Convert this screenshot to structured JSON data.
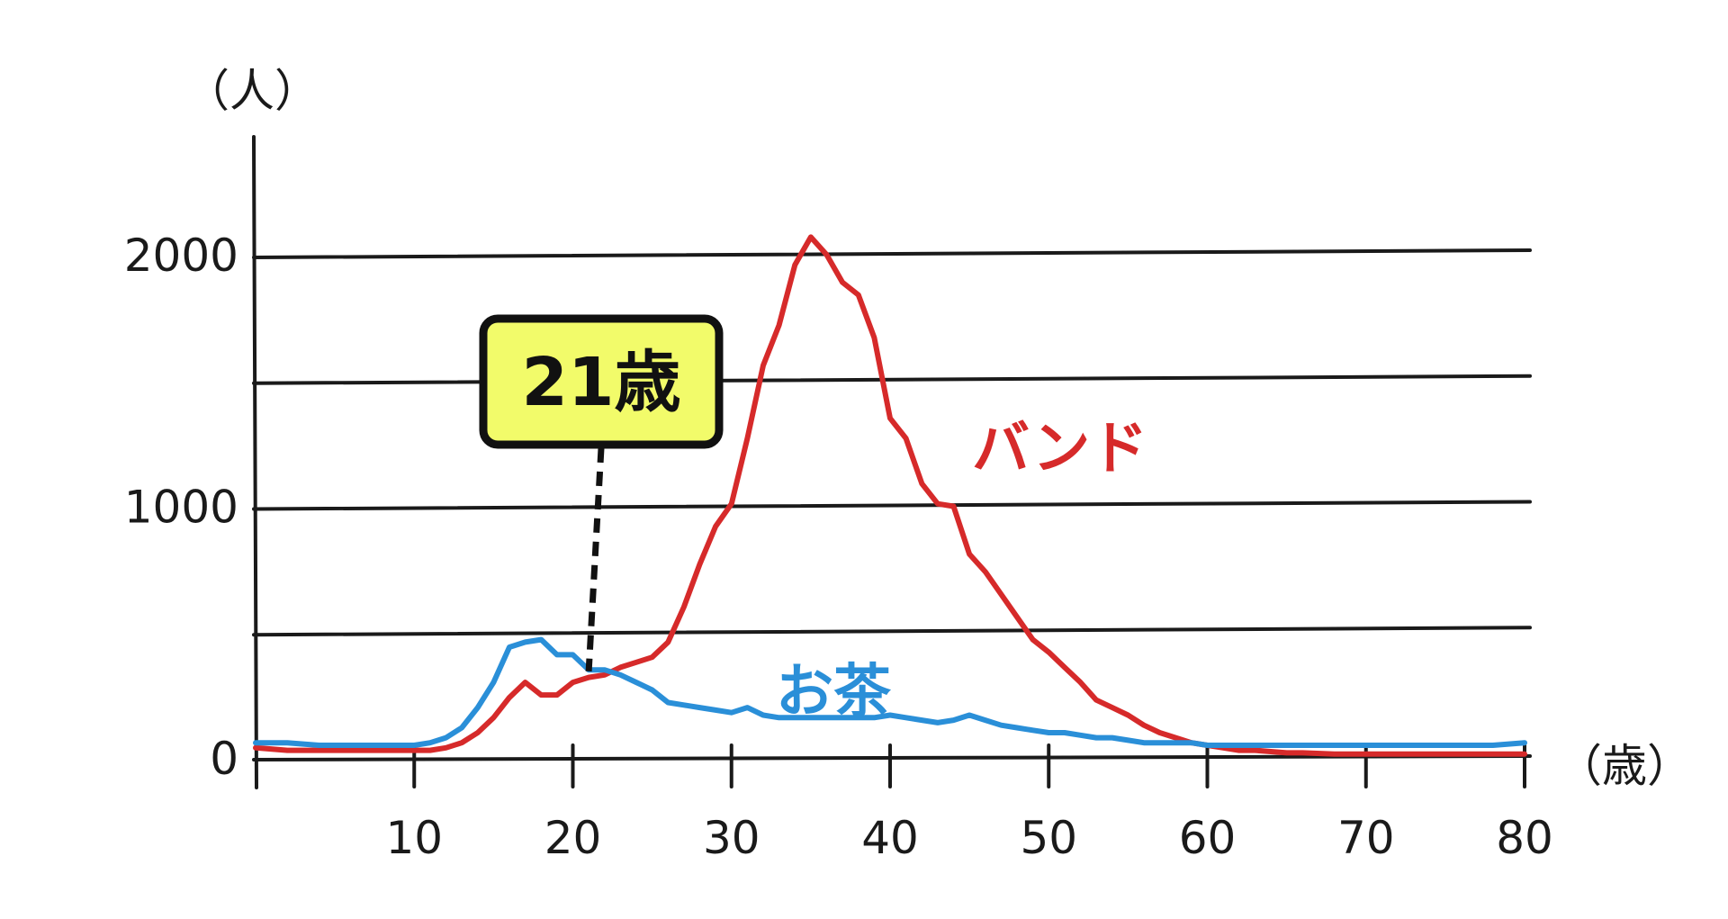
{
  "colors": {
    "band": "#d62a2a",
    "tea": "#2a8fd8",
    "axis": "#1a1a1a",
    "callout_fill": "#f2fb6a",
    "background": "#ffffff"
  },
  "chart_data": {
    "type": "line",
    "ylabel": "（人）",
    "xlabel": "（歳）",
    "xlim": [
      0,
      80
    ],
    "ylim": [
      0,
      2000
    ],
    "grid": true,
    "y_ticks": [
      {
        "value": 0,
        "label": "0"
      },
      {
        "value": 500,
        "label": ""
      },
      {
        "value": 1000,
        "label": "1000"
      },
      {
        "value": 1500,
        "label": ""
      },
      {
        "value": 2000,
        "label": "2000"
      }
    ],
    "x_ticks": [
      {
        "value": 10,
        "label": "10"
      },
      {
        "value": 20,
        "label": "20"
      },
      {
        "value": 30,
        "label": "30"
      },
      {
        "value": 40,
        "label": "40"
      },
      {
        "value": 50,
        "label": "50"
      },
      {
        "value": 60,
        "label": "60"
      },
      {
        "value": 70,
        "label": "70"
      },
      {
        "value": 80,
        "label": "80"
      }
    ],
    "series": [
      {
        "name": "バンド",
        "color_key": "band",
        "x": [
          0,
          2,
          4,
          6,
          8,
          10,
          11,
          12,
          13,
          14,
          15,
          16,
          17,
          18,
          19,
          20,
          21,
          22,
          23,
          24,
          25,
          26,
          27,
          28,
          29,
          30,
          31,
          32,
          33,
          34,
          35,
          36,
          37,
          38,
          39,
          40,
          41,
          42,
          43,
          44,
          45,
          46,
          47,
          48,
          49,
          50,
          51,
          52,
          53,
          54,
          55,
          56,
          57,
          58,
          59,
          60,
          61,
          62,
          63,
          64,
          65,
          66,
          68,
          70,
          72,
          74,
          76,
          78,
          80
        ],
        "y": [
          40,
          30,
          30,
          30,
          30,
          30,
          30,
          40,
          60,
          100,
          160,
          240,
          300,
          250,
          250,
          300,
          320,
          330,
          360,
          380,
          400,
          460,
          600,
          770,
          920,
          1010,
          1270,
          1560,
          1720,
          1960,
          2070,
          2000,
          1890,
          1840,
          1670,
          1350,
          1270,
          1090,
          1010,
          1000,
          810,
          740,
          650,
          560,
          470,
          420,
          360,
          300,
          230,
          200,
          170,
          130,
          100,
          80,
          60,
          50,
          40,
          30,
          30,
          25,
          20,
          20,
          15,
          15,
          15,
          15,
          15,
          15,
          15
        ]
      },
      {
        "name": "お茶",
        "color_key": "tea",
        "x": [
          0,
          2,
          4,
          6,
          8,
          10,
          11,
          12,
          13,
          14,
          15,
          16,
          17,
          18,
          19,
          20,
          21,
          22,
          23,
          24,
          25,
          26,
          27,
          28,
          29,
          30,
          31,
          32,
          33,
          34,
          35,
          36,
          37,
          38,
          39,
          40,
          41,
          42,
          43,
          44,
          45,
          46,
          47,
          48,
          49,
          50,
          51,
          52,
          53,
          54,
          55,
          56,
          57,
          58,
          59,
          60,
          61,
          62,
          63,
          64,
          65,
          66,
          68,
          70,
          72,
          74,
          76,
          78,
          80
        ],
        "y": [
          60,
          60,
          50,
          50,
          50,
          50,
          60,
          80,
          120,
          200,
          300,
          440,
          460,
          470,
          410,
          410,
          350,
          350,
          330,
          300,
          270,
          220,
          210,
          200,
          190,
          180,
          200,
          170,
          160,
          160,
          160,
          160,
          160,
          160,
          160,
          170,
          160,
          150,
          140,
          150,
          170,
          150,
          130,
          120,
          110,
          100,
          100,
          90,
          80,
          80,
          70,
          60,
          60,
          60,
          60,
          50,
          50,
          50,
          50,
          50,
          50,
          50,
          50,
          50,
          50,
          50,
          50,
          50,
          60
        ]
      }
    ],
    "series_labels": [
      "バンド",
      "お茶"
    ],
    "annotation": {
      "text": "21歳",
      "x": 21,
      "y": 330
    }
  }
}
